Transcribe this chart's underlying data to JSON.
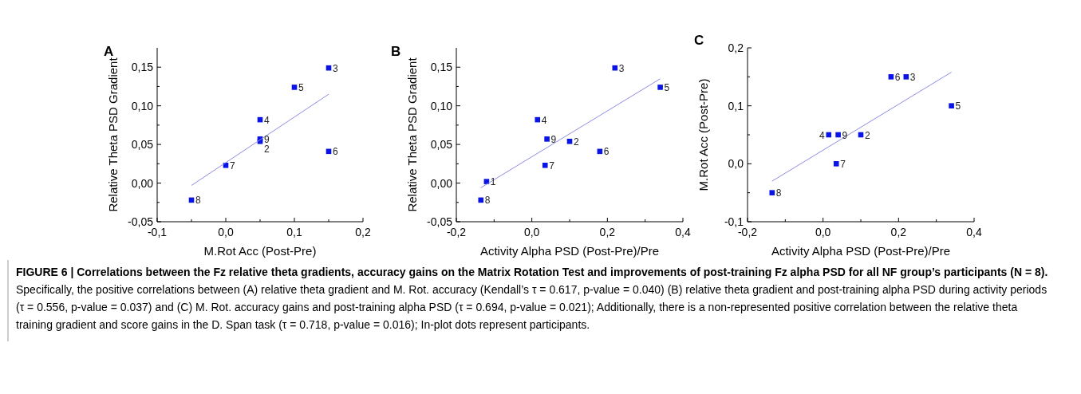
{
  "chart_data": [
    {
      "type": "scatter",
      "title": "A",
      "xlabel": "M.Rot Acc (Post-Pre)",
      "ylabel": "Relative Theta PSD Gradient",
      "xlim": [
        -0.1,
        0.2
      ],
      "xticks": [
        {
          "value": -0.1,
          "label": "-0,1"
        },
        {
          "value": -0.05,
          "label": null
        },
        {
          "value": 0,
          "label": "0,0"
        },
        {
          "value": 0.05,
          "label": null
        },
        {
          "value": 0.1,
          "label": "0,1"
        },
        {
          "value": 0.15,
          "label": null
        },
        {
          "value": 0.2,
          "label": "0,2"
        }
      ],
      "ylim": [
        -0.05,
        0.175
      ],
      "yticks": [
        {
          "value": -0.05,
          "label": "-0,05"
        },
        {
          "value": -0.025,
          "label": null
        },
        {
          "value": 0,
          "label": "0,00"
        },
        {
          "value": 0.025,
          "label": null
        },
        {
          "value": 0.05,
          "label": "0,05"
        },
        {
          "value": 0.075,
          "label": null
        },
        {
          "value": 0.1,
          "label": "0,10"
        },
        {
          "value": 0.125,
          "label": null
        },
        {
          "value": 0.15,
          "label": "0,15"
        }
      ],
      "grid": false,
      "series": [
        {
          "type": "scatter",
          "marker": "square",
          "color": "#0a14e6",
          "x": [
            0.15,
            0.1,
            0.05,
            0.05,
            0.05,
            0.15,
            0,
            -0.05
          ],
          "values": [
            0.149,
            0.124,
            0.082,
            0.057,
            0.054,
            0.041,
            0.023,
            -0.022
          ]
        },
        {
          "type": "line",
          "marker": "none",
          "color": "#8c8ce6",
          "x": [
            -0.05,
            0.15
          ],
          "values": [
            -0.003,
            0.115
          ]
        }
      ],
      "annotations": [
        {
          "text": "3",
          "x": 0.15,
          "y": 0.149
        },
        {
          "text": "5",
          "x": 0.1,
          "y": 0.124
        },
        {
          "text": "4",
          "x": 0.05,
          "y": 0.082
        },
        {
          "text": "9",
          "x": 0.05,
          "y": 0.057
        },
        {
          "text": "2",
          "x": 0.05,
          "y": 0.054
        },
        {
          "text": "6",
          "x": 0.15,
          "y": 0.041
        },
        {
          "text": "7",
          "x": 0,
          "y": 0.023
        },
        {
          "text": "8",
          "x": -0.05,
          "y": -0.022
        }
      ]
    },
    {
      "type": "scatter",
      "title": "B",
      "xlabel": "Activity Alpha PSD (Post-Pre)/Pre",
      "ylabel": "Relative Theta PSD Gradient",
      "xlim": [
        -0.2,
        0.4
      ],
      "xticks": [
        {
          "value": -0.2,
          "label": "-0,2"
        },
        {
          "value": -0.1,
          "label": null
        },
        {
          "value": 0,
          "label": "0,0"
        },
        {
          "value": 0.1,
          "label": null
        },
        {
          "value": 0.2,
          "label": "0,2"
        },
        {
          "value": 0.3,
          "label": null
        },
        {
          "value": 0.4,
          "label": "0,4"
        }
      ],
      "ylim": [
        -0.05,
        0.175
      ],
      "yticks": [
        {
          "value": -0.05,
          "label": "-0,05"
        },
        {
          "value": -0.025,
          "label": null
        },
        {
          "value": 0,
          "label": "0,00"
        },
        {
          "value": 0.025,
          "label": null
        },
        {
          "value": 0.05,
          "label": "0,05"
        },
        {
          "value": 0.075,
          "label": null
        },
        {
          "value": 0.1,
          "label": "0,10"
        },
        {
          "value": 0.125,
          "label": null
        },
        {
          "value": 0.15,
          "label": "0,15"
        }
      ],
      "grid": false,
      "series": [
        {
          "type": "scatter",
          "marker": "square",
          "color": "#0a14e6",
          "x": [
            0.22,
            0.34,
            0.015,
            0.04,
            0.1,
            0.18,
            0.035,
            -0.12,
            -0.135
          ],
          "values": [
            0.149,
            0.124,
            0.082,
            0.057,
            0.054,
            0.041,
            0.023,
            0.002,
            -0.022
          ]
        },
        {
          "type": "line",
          "marker": "none",
          "color": "#8c8ce6",
          "x": [
            -0.135,
            0.34
          ],
          "values": [
            -0.006,
            0.135
          ]
        }
      ],
      "annotations": [
        {
          "text": "3",
          "x": 0.22,
          "y": 0.149
        },
        {
          "text": "5",
          "x": 0.34,
          "y": 0.124
        },
        {
          "text": "4",
          "x": 0.015,
          "y": 0.082
        },
        {
          "text": "9",
          "x": 0.04,
          "y": 0.057
        },
        {
          "text": "2",
          "x": 0.1,
          "y": 0.054
        },
        {
          "text": "6",
          "x": 0.18,
          "y": 0.041
        },
        {
          "text": "7",
          "x": 0.035,
          "y": 0.023
        },
        {
          "text": "1",
          "x": -0.12,
          "y": 0.002
        },
        {
          "text": "8",
          "x": -0.135,
          "y": -0.022
        }
      ]
    },
    {
      "type": "scatter",
      "title": "C",
      "xlabel": "Activity Alpha PSD (Post-Pre)/Pre",
      "ylabel": "M.Rot Acc (Post-Pre)",
      "xlim": [
        -0.2,
        0.4
      ],
      "xticks": [
        {
          "value": -0.2,
          "label": "-0,2"
        },
        {
          "value": -0.1,
          "label": null
        },
        {
          "value": 0,
          "label": "0,0"
        },
        {
          "value": 0.1,
          "label": null
        },
        {
          "value": 0.2,
          "label": "0,2"
        },
        {
          "value": 0.3,
          "label": null
        },
        {
          "value": 0.4,
          "label": "0,4"
        }
      ],
      "ylim": [
        -0.1,
        0.2
      ],
      "yticks": [
        {
          "value": -0.1,
          "label": "-0,1"
        },
        {
          "value": -0.05,
          "label": null
        },
        {
          "value": 0,
          "label": "0,0"
        },
        {
          "value": 0.05,
          "label": null
        },
        {
          "value": 0.1,
          "label": "0,1"
        },
        {
          "value": 0.15,
          "label": null
        },
        {
          "value": 0.2,
          "label": "0,2"
        }
      ],
      "grid": false,
      "series": [
        {
          "type": "scatter",
          "marker": "square",
          "color": "#0a14e6",
          "x": [
            0.18,
            0.22,
            0.34,
            0.015,
            0.04,
            0.1,
            0.035,
            -0.135
          ],
          "values": [
            0.15,
            0.15,
            0.1,
            0.05,
            0.05,
            0.05,
            0,
            -0.05
          ]
        },
        {
          "type": "line",
          "marker": "none",
          "color": "#8c8ce6",
          "x": [
            -0.135,
            0.34
          ],
          "values": [
            -0.03,
            0.158
          ]
        }
      ],
      "annotations": [
        {
          "text": "6",
          "x": 0.18,
          "y": 0.15
        },
        {
          "text": "3",
          "x": 0.22,
          "y": 0.15
        },
        {
          "text": "5",
          "x": 0.34,
          "y": 0.1
        },
        {
          "text": "4",
          "x": 0.015,
          "y": 0.05
        },
        {
          "text": "9",
          "x": 0.04,
          "y": 0.05
        },
        {
          "text": "2",
          "x": 0.1,
          "y": 0.05
        },
        {
          "text": "7",
          "x": 0.035,
          "y": 0
        },
        {
          "text": "8",
          "x": -0.135,
          "y": -0.05
        }
      ]
    },
    {
      "type": "other",
      "title": "FIGURE 6 | Correlations between the Fz relative theta gradients, accuracy gains on the Matrix Rotation Test and improvements of post-training Fz alpha PSD for all NF group’s participants (N = 8).",
      "annotations": [
        "Specifically, the positive correlations between (A) relative theta gradient and M. Rot. accuracy (Kendall’s τ = 0.617, p-value = 0.040) (B) relative theta gradient and post-training alpha PSD during activity periods (τ = 0.556, p-value = 0.037) and (C) M. Rot. accuracy gains and post-training alpha PSD (τ = 0.694, p-value = 0.021); Additionally, there is a non-represented positive correlation between the relative theta training gradient and score gains in the D. Span task (τ = 0.718, p-value = 0.016); In-plot dots represent participants."
      ]
    }
  ]
}
